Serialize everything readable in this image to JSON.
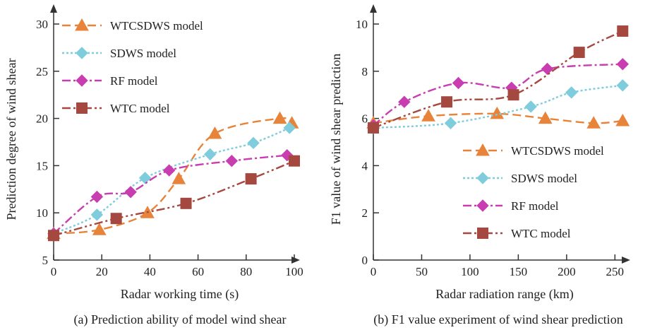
{
  "chart_data": [
    {
      "type": "line",
      "caption": "(a) Prediction ability of model wind shear",
      "title": "",
      "xlabel": "Radar working time (s)",
      "ylabel": "Prediction degree of wind shear",
      "xlim": [
        0,
        100
      ],
      "ylim": [
        5,
        30
      ],
      "xticks": [
        0,
        20,
        40,
        60,
        80,
        100
      ],
      "yticks": [
        5,
        10,
        15,
        20,
        25,
        30
      ],
      "grid": false,
      "legend_position": "top-left",
      "series": [
        {
          "name": "WTCSDWS model",
          "color": "#E8833A",
          "dash": "dash",
          "marker": "triangle",
          "x": [
            0,
            19,
            39,
            52,
            67,
            94,
            99
          ],
          "y": [
            7.8,
            8.2,
            10.0,
            13.6,
            18.4,
            20.0,
            19.5
          ]
        },
        {
          "name": "SDWS model",
          "color": "#7FCCDD",
          "dash": "dot",
          "marker": "diamond",
          "x": [
            0,
            18,
            38,
            65,
            83,
            98
          ],
          "y": [
            7.8,
            9.8,
            13.7,
            16.2,
            17.4,
            19.0
          ]
        },
        {
          "name": "RF model",
          "color": "#C83DAF",
          "dash": "dashdot",
          "marker": "diamond",
          "x": [
            0,
            18,
            32,
            48,
            74,
            97
          ],
          "y": [
            7.8,
            11.7,
            12.2,
            14.5,
            15.5,
            16.1
          ]
        },
        {
          "name": "WTC model",
          "color": "#A5483F",
          "dash": "dashdotdot",
          "marker": "square",
          "x": [
            0,
            26,
            55,
            82,
            100
          ],
          "y": [
            7.6,
            9.4,
            11.0,
            13.6,
            15.5
          ]
        }
      ]
    },
    {
      "type": "line",
      "caption": "(b) F1 value experiment of wind shear prediction",
      "title": "",
      "xlabel": "Radar radiation range (km)",
      "ylabel": "F1 value of wind shear prediction",
      "xlim": [
        0,
        260
      ],
      "ylim": [
        0,
        10
      ],
      "xticks": [
        0,
        50,
        100,
        150,
        200,
        250
      ],
      "yticks": [
        0,
        2,
        4,
        6,
        8,
        10
      ],
      "grid": false,
      "legend_position": "bottom-right",
      "series": [
        {
          "name": "WTCSDWS model",
          "color": "#E8833A",
          "dash": "dash",
          "marker": "triangle",
          "x": [
            0,
            57,
            128,
            178,
            228,
            258
          ],
          "y": [
            5.8,
            6.1,
            6.2,
            6.0,
            5.8,
            5.9
          ]
        },
        {
          "name": "SDWS model",
          "color": "#7FCCDD",
          "dash": "dot",
          "marker": "diamond",
          "x": [
            0,
            80,
            163,
            205,
            258
          ],
          "y": [
            5.6,
            5.8,
            6.5,
            7.1,
            7.4
          ]
        },
        {
          "name": "RF model",
          "color": "#C83DAF",
          "dash": "dashdot",
          "marker": "diamond",
          "x": [
            0,
            32,
            88,
            143,
            180,
            258
          ],
          "y": [
            5.7,
            6.7,
            7.5,
            7.3,
            8.1,
            8.3
          ]
        },
        {
          "name": "WTC model",
          "color": "#A5483F",
          "dash": "dashdotdot",
          "marker": "square",
          "x": [
            0,
            76,
            145,
            213,
            258
          ],
          "y": [
            5.6,
            6.7,
            7.0,
            8.8,
            9.7
          ]
        }
      ]
    }
  ]
}
